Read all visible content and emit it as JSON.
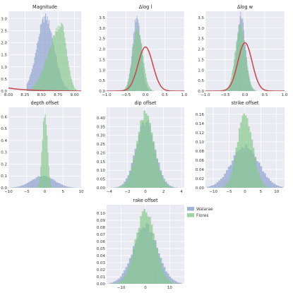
{
  "colors": {
    "background": "#eaeaf2",
    "grid": "#ffffff",
    "walarae": "#8c9fcf",
    "flores": "#86c98c",
    "curve": "#c44e52"
  },
  "legend": {
    "placement": "right-of-last-panel",
    "entries": [
      {
        "label": "Walarae",
        "color": "#8c9fcf"
      },
      {
        "label": "Flores",
        "color": "#86c98c"
      }
    ]
  },
  "chart_data": [
    {
      "type": "histogram",
      "title": "Magnitude",
      "xlim": [
        8.0,
        9.1
      ],
      "ylim": [
        0,
        3.3
      ],
      "xticks": [
        8.0,
        8.25,
        8.5,
        8.75,
        9.0
      ],
      "xticklabels": [
        "8.00",
        "8.25",
        "8.50",
        "8.75",
        "9.00"
      ],
      "yticks": [
        0,
        0.5,
        1.0,
        1.5,
        2.0,
        2.5,
        3.0
      ],
      "yticklabels": [
        "0.0",
        "0.5",
        "1.0",
        "1.5",
        "2.0",
        "2.5",
        "3.0"
      ],
      "series": [
        {
          "name": "Walarae",
          "dist": {
            "kind": "normal",
            "mu": 8.56,
            "sigma": 0.13,
            "peak": 3.05
          },
          "range": [
            8.25,
            8.95
          ],
          "bins": 55,
          "clip_left": 8.28
        },
        {
          "name": "Flores",
          "dist": {
            "kind": "skewleft",
            "mu": 8.8,
            "sigma": 0.11,
            "peak": 2.75
          },
          "range": [
            8.35,
            9.05
          ],
          "bins": 55
        }
      ],
      "curve": {
        "kind": "expdecay",
        "start": 0.13,
        "rate": 3.5
      }
    },
    {
      "type": "histogram",
      "title": "Δlog l",
      "xlim": [
        -1.0,
        1.0
      ],
      "ylim": [
        0,
        3.8
      ],
      "xticks": [
        -1.0,
        -0.5,
        0.0,
        0.5,
        1.0
      ],
      "xticklabels": [
        "−1.0",
        "−0.5",
        "0.0",
        "0.5",
        "1.0"
      ],
      "yticks": [
        0,
        0.5,
        1.0,
        1.5,
        2.0,
        2.5,
        3.0,
        3.5
      ],
      "yticklabels": [
        "0.0",
        "0.5",
        "1.0",
        "1.5",
        "2.0",
        "2.5",
        "3.0",
        "3.5"
      ],
      "series": [
        {
          "name": "Walarae",
          "dist": {
            "kind": "normal",
            "mu": -0.22,
            "sigma": 0.11,
            "peak": 3.55
          },
          "range": [
            -0.65,
            0.15
          ],
          "bins": 45
        },
        {
          "name": "Flores",
          "dist": {
            "kind": "normal",
            "mu": -0.2,
            "sigma": 0.13,
            "peak": 3.0
          },
          "range": [
            -0.7,
            0.25
          ],
          "bins": 45
        }
      ],
      "curve": {
        "kind": "normal",
        "mu": 0.0,
        "sigma": 0.19,
        "peak": 2.1
      }
    },
    {
      "type": "histogram",
      "title": "Δlog w",
      "xlim": [
        -1.0,
        1.0
      ],
      "ylim": [
        0,
        3.8
      ],
      "xticks": [
        -1.0,
        -0.5,
        0.0,
        0.5,
        1.0
      ],
      "xticklabels": [
        "−1.0",
        "−0.5",
        "0.0",
        "0.5",
        "1.0"
      ],
      "yticks": [
        0,
        0.5,
        1.0,
        1.5,
        2.0,
        2.5,
        3.0,
        3.5
      ],
      "yticklabels": [
        "0.0",
        "0.5",
        "1.0",
        "1.5",
        "2.0",
        "2.5",
        "3.0",
        "3.5"
      ],
      "series": [
        {
          "name": "Walarae",
          "dist": {
            "kind": "normal",
            "mu": -0.1,
            "sigma": 0.11,
            "peak": 3.6
          },
          "range": [
            -0.5,
            0.25
          ],
          "bins": 45
        },
        {
          "name": "Flores",
          "dist": {
            "kind": "normal",
            "mu": -0.12,
            "sigma": 0.13,
            "peak": 3.1
          },
          "range": [
            -0.55,
            0.3
          ],
          "bins": 45
        }
      ],
      "curve": {
        "kind": "normal",
        "mu": 0.0,
        "sigma": 0.18,
        "peak": 2.3
      }
    },
    {
      "type": "histogram",
      "title": "depth offset",
      "xlim": [
        -10,
        10
      ],
      "ylim": [
        0,
        0.68
      ],
      "xticks": [
        -10,
        -5,
        0,
        5,
        10
      ],
      "xticklabels": [
        "−10",
        "−5",
        "0",
        "5",
        "10"
      ],
      "yticks": [
        0,
        0.1,
        0.2,
        0.3,
        0.4,
        0.5,
        0.6
      ],
      "yticklabels": [
        "0.0",
        "0.1",
        "0.2",
        "0.3",
        "0.4",
        "0.5",
        "0.6"
      ],
      "series": [
        {
          "name": "Walarae",
          "dist": {
            "kind": "normal",
            "mu": -0.5,
            "sigma": 3.2,
            "peak": 0.1
          },
          "range": [
            -10,
            10
          ],
          "bins": 40
        },
        {
          "name": "Flores",
          "dist": {
            "kind": "normal",
            "mu": 0.0,
            "sigma": 0.7,
            "peak": 0.64
          },
          "range": [
            -3,
            3
          ],
          "bins": 24
        }
      ]
    },
    {
      "type": "histogram",
      "title": "dip offset",
      "xlim": [
        -4.3,
        4.3
      ],
      "ylim": [
        0,
        0.46
      ],
      "xticks": [
        -4,
        -2,
        0,
        2,
        4
      ],
      "xticklabels": [
        "−4",
        "−2",
        "0",
        "2",
        "4"
      ],
      "yticks": [
        0,
        0.05,
        0.1,
        0.15,
        0.2,
        0.25,
        0.3,
        0.35,
        0.4
      ],
      "yticklabels": [
        "0.00",
        "0.05",
        "0.10",
        "0.15",
        "0.20",
        "0.25",
        "0.30",
        "0.35",
        "0.40"
      ],
      "series": [
        {
          "name": "Walarae",
          "dist": {
            "kind": "normal",
            "mu": 0.0,
            "sigma": 1.05,
            "peak": 0.38
          },
          "range": [
            -4,
            4
          ],
          "bins": 40
        },
        {
          "name": "Flores",
          "dist": {
            "kind": "normal",
            "mu": 0.0,
            "sigma": 0.95,
            "peak": 0.42
          },
          "range": [
            -4,
            4
          ],
          "bins": 40
        }
      ]
    },
    {
      "type": "histogram",
      "title": "strike offset",
      "xlim": [
        -12.5,
        12.5
      ],
      "ylim": [
        0,
        0.175
      ],
      "xticks": [
        -10,
        -5,
        0,
        5,
        10
      ],
      "xticklabels": [
        "−10",
        "−5",
        "0",
        "5",
        "10"
      ],
      "yticks": [
        0,
        0.02,
        0.04,
        0.06,
        0.08,
        0.1,
        0.12,
        0.14,
        0.16
      ],
      "yticklabels": [
        "0.00",
        "0.02",
        "0.04",
        "0.06",
        "0.08",
        "0.10",
        "0.12",
        "0.14",
        "0.16"
      ],
      "series": [
        {
          "name": "Walarae",
          "dist": {
            "kind": "normal",
            "mu": 0.0,
            "sigma": 4.3,
            "peak": 0.09
          },
          "range": [
            -12,
            12
          ],
          "bins": 40
        },
        {
          "name": "Flores",
          "dist": {
            "kind": "normal",
            "mu": 0.0,
            "sigma": 2.4,
            "peak": 0.16
          },
          "range": [
            -8,
            8
          ],
          "bins": 32
        }
      ]
    },
    {
      "type": "histogram",
      "title": "rake offset",
      "xlim": [
        -16,
        16
      ],
      "ylim": [
        0,
        0.112
      ],
      "xticks": [
        -10,
        0,
        10
      ],
      "xticklabels": [
        "−10",
        "0",
        "10"
      ],
      "yticks": [
        0,
        0.01,
        0.02,
        0.03,
        0.04,
        0.05,
        0.06,
        0.07,
        0.08,
        0.09,
        0.1
      ],
      "yticklabels": [
        "0.00",
        "0.01",
        "0.02",
        "0.03",
        "0.04",
        "0.05",
        "0.06",
        "0.07",
        "0.08",
        "0.09",
        "0.10"
      ],
      "series": [
        {
          "name": "Walarae",
          "dist": {
            "kind": "normal",
            "mu": 0.0,
            "sigma": 5.0,
            "peak": 0.082
          },
          "range": [
            -15,
            15
          ],
          "bins": 40
        },
        {
          "name": "Flores",
          "dist": {
            "kind": "normal",
            "mu": 0.0,
            "sigma": 4.0,
            "peak": 0.102
          },
          "range": [
            -15,
            15
          ],
          "bins": 40
        }
      ]
    }
  ]
}
